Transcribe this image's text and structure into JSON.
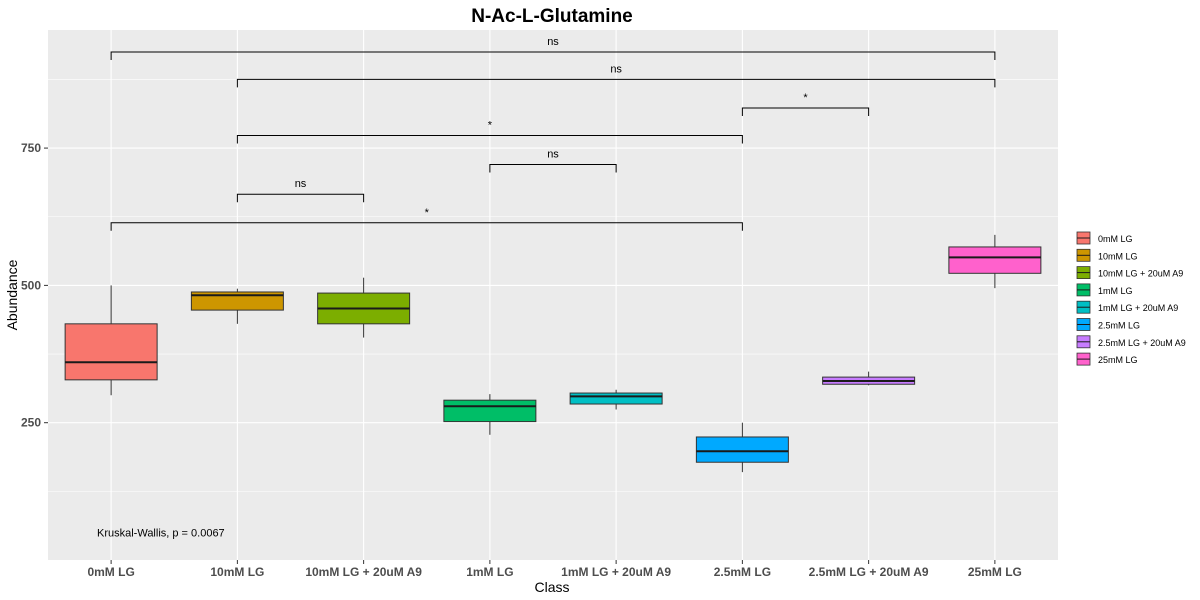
{
  "chart_data": {
    "type": "box",
    "title": "N-Ac-L-Glutamine",
    "xlabel": "Class",
    "ylabel": "Abundance",
    "ylim": [
      0,
      965
    ],
    "yticks": [
      250,
      500,
      750
    ],
    "grid": true,
    "legend_position": "right",
    "categories": [
      "0mM LG",
      "10mM LG",
      "10mM LG + 20uM A9",
      "1mM LG",
      "1mM LG + 20uM A9",
      "2.5mM LG",
      "2.5mM LG + 20uM A9",
      "25mM LG"
    ],
    "legend": [
      "0mM LG",
      "10mM LG",
      "10mM LG + 20uM A9",
      "1mM LG",
      "1mM LG + 20uM A9",
      "2.5mM LG",
      "2.5mM LG + 20uM A9",
      "25mM LG"
    ],
    "colors": [
      "#F8766D",
      "#CD9600",
      "#7CAE00",
      "#00BE67",
      "#00BFC4",
      "#00A9FF",
      "#C77CFF",
      "#FF61CC"
    ],
    "boxes": [
      {
        "category": "0mM LG",
        "min": 300,
        "q1": 328,
        "median": 360,
        "q3": 430,
        "max": 500
      },
      {
        "category": "10mM LG",
        "min": 430,
        "q1": 455,
        "median": 482,
        "q3": 488,
        "max": 494
      },
      {
        "category": "10mM LG + 20uM A9",
        "min": 405,
        "q1": 430,
        "median": 458,
        "q3": 486,
        "max": 514
      },
      {
        "category": "1mM LG",
        "min": 228,
        "q1": 252,
        "median": 280,
        "q3": 291,
        "max": 302
      },
      {
        "category": "1mM LG + 20uM A9",
        "min": 274,
        "q1": 284,
        "median": 298,
        "q3": 304,
        "max": 310
      },
      {
        "category": "2.5mM LG",
        "min": 160,
        "q1": 178,
        "median": 198,
        "q3": 224,
        "max": 250
      },
      {
        "category": "2.5mM LG + 20uM A9",
        "min": 318,
        "q1": 320,
        "median": 326,
        "q3": 333,
        "max": 343
      },
      {
        "category": "25mM LG",
        "min": 495,
        "q1": 522,
        "median": 551,
        "q3": 570,
        "max": 592
      }
    ],
    "comparisons": [
      {
        "from": "0mM LG",
        "to": "25mM LG",
        "y": 925,
        "label": "ns"
      },
      {
        "from": "10mM LG",
        "to": "25mM LG",
        "y": 875,
        "label": "ns"
      },
      {
        "from": "2.5mM LG",
        "to": "2.5mM LG + 20uM A9",
        "y": 823,
        "label": "*"
      },
      {
        "from": "10mM LG",
        "to": "2.5mM LG",
        "y": 773,
        "label": "*"
      },
      {
        "from": "1mM LG",
        "to": "1mM LG + 20uM A9",
        "y": 720,
        "label": "ns"
      },
      {
        "from": "10mM LG",
        "to": "10mM LG + 20uM A9",
        "y": 666,
        "label": "ns"
      },
      {
        "from": "0mM LG",
        "to": "2.5mM LG",
        "y": 614,
        "label": "*"
      }
    ],
    "annotation": "Kruskal-Wallis, p = 0.0067"
  }
}
